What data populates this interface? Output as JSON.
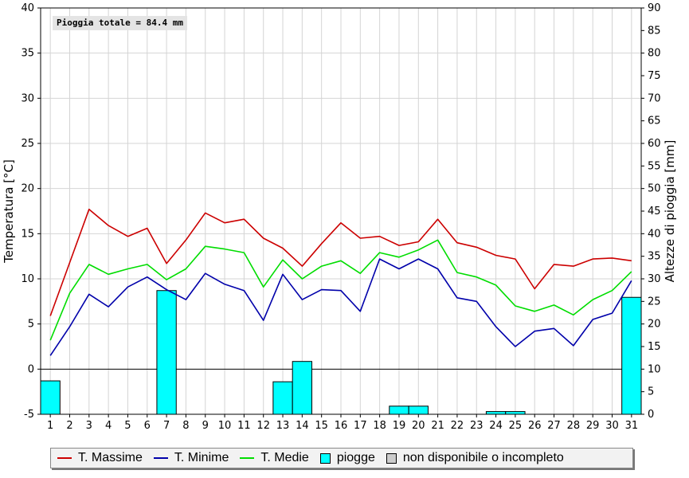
{
  "annotation": "Pioggia totale = 84.4 mm",
  "chart_data": {
    "type": "line",
    "x": [
      1,
      2,
      3,
      4,
      5,
      6,
      7,
      8,
      9,
      10,
      11,
      12,
      13,
      14,
      15,
      16,
      17,
      18,
      19,
      20,
      21,
      22,
      23,
      24,
      25,
      26,
      27,
      28,
      29,
      30,
      31
    ],
    "ylabel": "Temperatura [°C]",
    "y2label": "Altezze di pioggia [mm]",
    "ylim": [
      -5,
      40
    ],
    "y2lim": [
      0,
      90
    ],
    "yticks": [
      -5,
      0,
      5,
      10,
      15,
      20,
      25,
      30,
      35,
      40
    ],
    "y2ticks": [
      0,
      5,
      10,
      15,
      20,
      25,
      30,
      35,
      40,
      45,
      50,
      55,
      60,
      65,
      70,
      75,
      80,
      85,
      90
    ],
    "grid": true,
    "legend_position": "bottom",
    "series": [
      {
        "name": "T. Massime",
        "type": "line",
        "axis": "left",
        "color": "#cc0000",
        "values": [
          5.9,
          11.8,
          17.7,
          15.9,
          14.7,
          15.6,
          11.7,
          14.3,
          17.3,
          16.2,
          16.6,
          14.5,
          13.4,
          11.4,
          13.9,
          16.2,
          14.5,
          14.7,
          13.7,
          14.1,
          16.6,
          14.0,
          13.5,
          12.6,
          12.2,
          8.9,
          11.6,
          11.4,
          12.2,
          12.3,
          12.0
        ]
      },
      {
        "name": "T. Minime",
        "type": "line",
        "axis": "left",
        "color": "#0000aa",
        "values": [
          1.5,
          4.7,
          8.3,
          6.9,
          9.1,
          10.2,
          8.8,
          7.7,
          10.6,
          9.4,
          8.7,
          5.4,
          10.5,
          7.7,
          8.8,
          8.7,
          6.4,
          12.2,
          11.1,
          12.2,
          11.1,
          7.9,
          7.5,
          4.7,
          2.5,
          4.2,
          4.5,
          2.6,
          5.5,
          6.2,
          9.8
        ]
      },
      {
        "name": "T. Medie",
        "type": "line",
        "axis": "left",
        "color": "#00dd00",
        "values": [
          3.2,
          8.4,
          11.6,
          10.5,
          11.1,
          11.6,
          9.9,
          11.1,
          13.6,
          13.3,
          12.9,
          9.1,
          12.1,
          10.0,
          11.4,
          12.0,
          10.6,
          12.9,
          12.4,
          13.2,
          14.3,
          10.7,
          10.2,
          9.3,
          7.0,
          6.4,
          7.1,
          6.0,
          7.7,
          8.7,
          10.8
        ]
      },
      {
        "name": "piogge",
        "type": "bar",
        "axis": "right",
        "color": "#00ffff",
        "values": [
          7.4,
          0,
          0,
          0,
          0,
          0,
          27.4,
          0,
          0,
          0,
          0,
          0,
          7.2,
          11.7,
          0,
          0,
          0,
          0,
          1.8,
          1.8,
          0,
          0,
          0,
          0.6,
          0.6,
          0,
          0,
          0,
          0,
          0,
          25.9
        ]
      }
    ],
    "legend": [
      {
        "label": "T. Massime",
        "kind": "line",
        "color": "#cc0000"
      },
      {
        "label": "T. Minime",
        "kind": "line",
        "color": "#0000aa"
      },
      {
        "label": "T. Medie",
        "kind": "line",
        "color": "#00dd00"
      },
      {
        "label": "piogge",
        "kind": "box",
        "color": "#00ffff"
      },
      {
        "label": "non disponibile o incompleto",
        "kind": "box",
        "color": "#cccccc"
      }
    ]
  }
}
